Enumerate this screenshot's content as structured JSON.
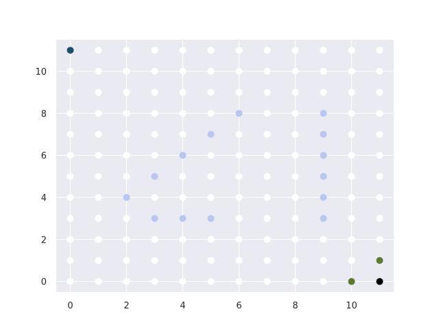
{
  "chart_data": {
    "type": "scatter",
    "title": "",
    "xlabel": "",
    "ylabel": "",
    "xlim": [
      -0.5,
      11.5
    ],
    "ylim": [
      -0.5,
      11.5
    ],
    "x_ticks": [
      0,
      2,
      4,
      6,
      8,
      10
    ],
    "y_ticks": [
      0,
      2,
      4,
      6,
      8,
      10
    ],
    "grid": true,
    "background": "#eaeaf2",
    "grid_color": "#ffffff",
    "grid_points": {
      "x_range": [
        0,
        11
      ],
      "y_range": [
        0,
        11
      ],
      "color": "#ffffff"
    },
    "series": [
      {
        "color": "#1f4e6b",
        "points": [
          [
            0,
            11
          ]
        ]
      },
      {
        "color": "#b8c7f0",
        "points": [
          [
            2,
            4
          ],
          [
            3,
            3
          ],
          [
            3,
            5
          ],
          [
            4,
            3
          ],
          [
            4,
            6
          ],
          [
            5,
            3
          ],
          [
            5,
            7
          ],
          [
            6,
            8
          ],
          [
            9,
            3
          ],
          [
            9,
            4
          ],
          [
            9,
            5
          ],
          [
            9,
            6
          ],
          [
            9,
            7
          ],
          [
            9,
            8
          ]
        ]
      },
      {
        "color": "#5b7a2e",
        "points": [
          [
            10,
            0
          ],
          [
            11,
            1
          ]
        ]
      },
      {
        "color": "#000000",
        "points": [
          [
            11,
            0
          ]
        ]
      }
    ]
  }
}
